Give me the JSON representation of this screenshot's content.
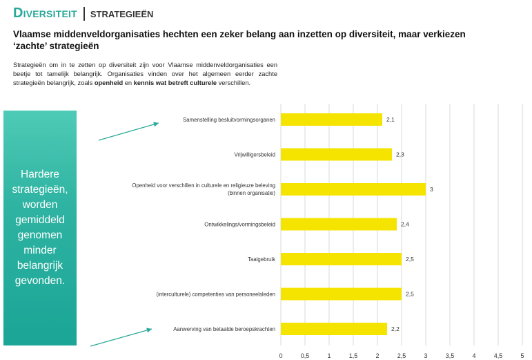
{
  "header": {
    "brand": "Diversiteit",
    "section": "strategieën"
  },
  "headline": "Vlaamse middenveldorganisaties hechten een zeker belang aan inzetten op diversiteit, maar verkiezen ‘zachte’ strategieën",
  "intro": {
    "text_before": "Strategieën om in te zetten op diversiteit zijn voor Vlaamse middenveldorganisaties een beetje tot tamelijk belangrijk. Organisaties vinden over het algemeen eerder zachte strategieën belangrijk, zoals ",
    "bold1": "openheid",
    "middle": " en ",
    "bold2": "kennis wat betreft culturele",
    "text_after": " verschillen."
  },
  "callout": {
    "text": "Hardere strategieën, worden gemiddeld genomen minder belangrijk gevonden."
  },
  "colors": {
    "accent": "#2aa89a",
    "bar": "#f5e400",
    "arrow": "#2aa89a"
  },
  "chart_data": {
    "type": "bar",
    "orientation": "horizontal",
    "categories": [
      [
        "Samenstelling besluitvormingsorganen"
      ],
      [
        "Vrijwilligersbeleid"
      ],
      [
        "Openheid voor verschillen in culturele en religieuze beleving",
        "(binnen organisatie)"
      ],
      [
        "Ontwikkelings/vormingsbeleid"
      ],
      [
        "Taalgebruik"
      ],
      [
        "(interculturele) competenties van personeelsleden"
      ],
      [
        "Aanwerving van betaalde beroepskrachten"
      ]
    ],
    "values": [
      2.1,
      2.3,
      3,
      2.4,
      2.5,
      2.5,
      2.2
    ],
    "value_labels": [
      "2,1",
      "2,3",
      "3",
      "2,4",
      "2,5",
      "2,5",
      "2,2"
    ],
    "xlim": [
      0,
      5
    ],
    "tick_labels": [
      "0",
      "0,5",
      "1",
      "1,5",
      "2",
      "2,5",
      "3",
      "3,5",
      "4",
      "4,5",
      "5"
    ],
    "grid": true
  }
}
